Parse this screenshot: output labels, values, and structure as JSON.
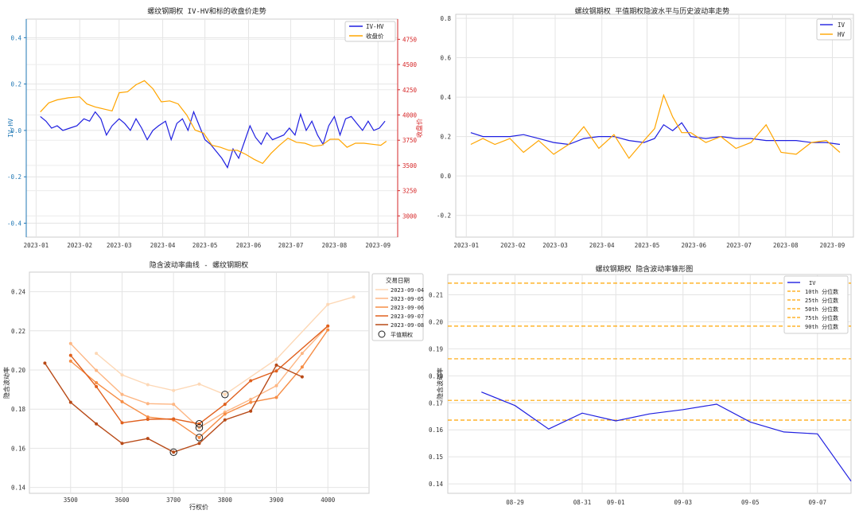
{
  "chart_data": [
    {
      "type": "line",
      "title": "螺纹钢期权 IV-HV和标的收盘价走势",
      "ylabel": "IV-HV",
      "y2label": "收盘价",
      "ylim": [
        -0.46,
        0.48
      ],
      "y2lim": [
        2790,
        4950
      ],
      "xlim": [
        "2022-12-25",
        "2023-09-15"
      ],
      "grid": true,
      "legend_position": "top-right",
      "x_ticks": [
        "2023-01",
        "2023-02",
        "2023-03",
        "2023-04",
        "2023-05",
        "2023-06",
        "2023-07",
        "2023-08",
        "2023-09"
      ],
      "y_ticks": [
        -0.4,
        -0.2,
        0.0,
        0.2,
        0.4
      ],
      "y2_ticks": [
        3000,
        3250,
        3500,
        3750,
        4000,
        4250,
        4500,
        4750
      ],
      "series": [
        {
          "name": "IV-HV",
          "axis": "left",
          "color": "#1f1fe0",
          "x": [
            "2023-01-04",
            "2023-01-08",
            "2023-01-12",
            "2023-01-16",
            "2023-01-20",
            "2023-01-25",
            "2023-01-30",
            "2023-02-04",
            "2023-02-08",
            "2023-02-12",
            "2023-02-16",
            "2023-02-20",
            "2023-02-24",
            "2023-03-01",
            "2023-03-05",
            "2023-03-09",
            "2023-03-13",
            "2023-03-17",
            "2023-03-21",
            "2023-03-25",
            "2023-03-29",
            "2023-04-03",
            "2023-04-07",
            "2023-04-11",
            "2023-04-15",
            "2023-04-19",
            "2023-04-23",
            "2023-04-27",
            "2023-05-01",
            "2023-05-05",
            "2023-05-09",
            "2023-05-13",
            "2023-05-17",
            "2023-05-21",
            "2023-05-25",
            "2023-05-29",
            "2023-06-02",
            "2023-06-06",
            "2023-06-10",
            "2023-06-14",
            "2023-06-18",
            "2023-06-22",
            "2023-06-26",
            "2023-06-30",
            "2023-07-04",
            "2023-07-08",
            "2023-07-12",
            "2023-07-16",
            "2023-07-20",
            "2023-07-24",
            "2023-07-28",
            "2023-08-01",
            "2023-08-05",
            "2023-08-09",
            "2023-08-13",
            "2023-08-17",
            "2023-08-21",
            "2023-08-25",
            "2023-08-29",
            "2023-09-02",
            "2023-09-06"
          ],
          "values": [
            0.06,
            0.04,
            0.01,
            0.02,
            0.0,
            0.01,
            0.02,
            0.05,
            0.04,
            0.08,
            0.05,
            -0.02,
            0.02,
            0.05,
            0.03,
            0.0,
            0.05,
            0.01,
            -0.04,
            0.0,
            0.02,
            0.04,
            -0.04,
            0.03,
            0.05,
            0.0,
            0.08,
            0.02,
            -0.04,
            -0.06,
            -0.09,
            -0.12,
            -0.16,
            -0.08,
            -0.12,
            -0.05,
            0.02,
            -0.03,
            -0.06,
            -0.01,
            -0.04,
            -0.03,
            -0.02,
            0.01,
            -0.02,
            0.07,
            0.0,
            0.04,
            -0.02,
            -0.06,
            0.02,
            0.06,
            -0.02,
            0.05,
            0.06,
            0.03,
            0.0,
            0.04,
            0.0,
            0.01,
            0.04
          ]
        },
        {
          "name": "收盘价",
          "axis": "right",
          "color": "#ffa500",
          "x": [
            "2023-01-04",
            "2023-01-10",
            "2023-01-16",
            "2023-01-24",
            "2023-02-01",
            "2023-02-06",
            "2023-02-12",
            "2023-02-18",
            "2023-02-24",
            "2023-03-01",
            "2023-03-07",
            "2023-03-13",
            "2023-03-19",
            "2023-03-25",
            "2023-03-31",
            "2023-04-06",
            "2023-04-12",
            "2023-04-18",
            "2023-04-24",
            "2023-04-30",
            "2023-05-06",
            "2023-05-12",
            "2023-05-18",
            "2023-05-24",
            "2023-05-30",
            "2023-06-05",
            "2023-06-11",
            "2023-06-17",
            "2023-06-23",
            "2023-06-29",
            "2023-07-05",
            "2023-07-11",
            "2023-07-17",
            "2023-07-23",
            "2023-07-29",
            "2023-08-04",
            "2023-08-10",
            "2023-08-16",
            "2023-08-22",
            "2023-08-28",
            "2023-09-03",
            "2023-09-07"
          ],
          "values": [
            4030,
            4120,
            4150,
            4170,
            4180,
            4110,
            4080,
            4060,
            4040,
            4220,
            4230,
            4300,
            4340,
            4260,
            4130,
            4140,
            4110,
            4000,
            3850,
            3820,
            3700,
            3680,
            3650,
            3650,
            3610,
            3560,
            3520,
            3620,
            3700,
            3770,
            3730,
            3720,
            3690,
            3700,
            3760,
            3760,
            3680,
            3720,
            3720,
            3710,
            3700,
            3740
          ]
        }
      ]
    },
    {
      "type": "line",
      "title": "螺纹钢期权 平值期权隐波水平与历史波动率走势",
      "ylim": [
        -0.31,
        0.82
      ],
      "xlim": [
        "2022-12-25",
        "2023-09-15"
      ],
      "grid": true,
      "legend_position": "top-right",
      "x_ticks": [
        "2023-01",
        "2023-02",
        "2023-03",
        "2023-04",
        "2023-05",
        "2023-06",
        "2023-07",
        "2023-08",
        "2023-09"
      ],
      "y_ticks": [
        -0.2,
        0.0,
        0.2,
        0.4,
        0.6,
        0.8
      ],
      "series": [
        {
          "name": "IV",
          "color": "#1f1fe0",
          "x": [
            "2023-01-04",
            "2023-01-12",
            "2023-01-20",
            "2023-01-30",
            "2023-02-08",
            "2023-02-18",
            "2023-02-28",
            "2023-03-10",
            "2023-03-20",
            "2023-03-30",
            "2023-04-09",
            "2023-04-19",
            "2023-04-29",
            "2023-05-06",
            "2023-05-12",
            "2023-05-18",
            "2023-05-24",
            "2023-05-30",
            "2023-06-09",
            "2023-06-19",
            "2023-06-29",
            "2023-07-09",
            "2023-07-19",
            "2023-07-29",
            "2023-08-08",
            "2023-08-18",
            "2023-08-28",
            "2023-09-06"
          ],
          "values": [
            0.22,
            0.2,
            0.2,
            0.2,
            0.21,
            0.19,
            0.17,
            0.16,
            0.19,
            0.2,
            0.2,
            0.18,
            0.17,
            0.19,
            0.26,
            0.23,
            0.27,
            0.2,
            0.19,
            0.2,
            0.19,
            0.19,
            0.18,
            0.18,
            0.18,
            0.17,
            0.17,
            0.16
          ]
        },
        {
          "name": "HV",
          "color": "#ffa500",
          "x": [
            "2023-01-04",
            "2023-01-12",
            "2023-01-20",
            "2023-01-30",
            "2023-02-08",
            "2023-02-18",
            "2023-02-28",
            "2023-03-10",
            "2023-03-20",
            "2023-03-30",
            "2023-04-09",
            "2023-04-19",
            "2023-04-29",
            "2023-05-06",
            "2023-05-12",
            "2023-05-18",
            "2023-05-24",
            "2023-05-30",
            "2023-06-09",
            "2023-06-19",
            "2023-06-29",
            "2023-07-09",
            "2023-07-19",
            "2023-07-29",
            "2023-08-08",
            "2023-08-18",
            "2023-08-28",
            "2023-09-06"
          ],
          "values": [
            0.16,
            0.19,
            0.16,
            0.19,
            0.12,
            0.18,
            0.11,
            0.16,
            0.25,
            0.14,
            0.21,
            0.09,
            0.18,
            0.24,
            0.41,
            0.3,
            0.22,
            0.22,
            0.17,
            0.2,
            0.14,
            0.17,
            0.26,
            0.12,
            0.11,
            0.17,
            0.18,
            0.12
          ]
        }
      ]
    },
    {
      "type": "line",
      "title": "隐含波动率曲线 - 螺纹钢期权",
      "xlabel": "行权价",
      "ylabel": "隐含波动率",
      "xlim": [
        3420,
        4080
      ],
      "ylim": [
        0.137,
        0.25
      ],
      "grid": true,
      "legend_title": "交易日期",
      "legend_position": "upper-right-outside",
      "atm_label": "平值期权",
      "x_ticks": [
        3500,
        3600,
        3700,
        3800,
        3900,
        4000
      ],
      "y_ticks": [
        0.14,
        0.16,
        0.18,
        0.2,
        0.22,
        0.24
      ],
      "series": [
        {
          "name": "2023-09-04",
          "color": "#fdd8b6",
          "x": [
            3550,
            3600,
            3650,
            3700,
            3750,
            3800,
            3900,
            4000,
            4050
          ],
          "values": [
            0.2085,
            0.1975,
            0.1925,
            0.1895,
            0.1928,
            0.1875,
            0.2055,
            0.2335,
            0.2373
          ]
        },
        {
          "name": "2023-09-05",
          "color": "#fdb683",
          "x": [
            3500,
            3550,
            3600,
            3650,
            3700,
            3750,
            3800,
            3850,
            3900,
            3950,
            4000
          ],
          "values": [
            0.2135,
            0.1998,
            0.1875,
            0.1828,
            0.1825,
            0.1705,
            0.1785,
            0.185,
            0.192,
            0.2085,
            0.2225
          ]
        },
        {
          "name": "2023-09-06",
          "color": "#f68d45",
          "x": [
            3500,
            3550,
            3600,
            3650,
            3700,
            3750,
            3800,
            3850,
            3900,
            3950,
            4000
          ],
          "values": [
            0.2045,
            0.1935,
            0.1838,
            0.176,
            0.1745,
            0.1655,
            0.1775,
            0.1835,
            0.186,
            0.2015,
            0.2205
          ]
        },
        {
          "name": "2023-09-07",
          "color": "#e0601d",
          "x": [
            3500,
            3550,
            3600,
            3650,
            3700,
            3750,
            3800,
            3850,
            3900,
            4000
          ],
          "values": [
            0.2075,
            0.1915,
            0.173,
            0.1748,
            0.175,
            0.1725,
            0.1825,
            0.1945,
            0.1995,
            0.2225
          ]
        },
        {
          "name": "2023-09-08",
          "color": "#b84a17",
          "x": [
            3450,
            3500,
            3550,
            3600,
            3650,
            3700,
            3750,
            3800,
            3850,
            3900,
            3950
          ],
          "values": [
            0.2035,
            0.1835,
            0.1725,
            0.1625,
            0.165,
            0.158,
            0.1625,
            0.1745,
            0.179,
            0.2025,
            0.1965
          ]
        }
      ],
      "atm_points": [
        {
          "x": 3700,
          "y": 0.158
        },
        {
          "x": 3750,
          "y": 0.1655
        },
        {
          "x": 3750,
          "y": 0.1705
        },
        {
          "x": 3750,
          "y": 0.1725
        },
        {
          "x": 3800,
          "y": 0.1875
        }
      ]
    },
    {
      "type": "line",
      "title": "螺纹钢期权 隐含波动率锥形图",
      "ylabel": "隐含波动率",
      "xlim": [
        "2023-08-27",
        "2023-09-08"
      ],
      "ylim": [
        0.1365,
        0.2175
      ],
      "grid": true,
      "legend_position": "top-right",
      "x_ticks": [
        "08-29",
        "08-31",
        "09-01",
        "09-03",
        "09-05",
        "09-07"
      ],
      "x_tick_dates": [
        "2023-08-29",
        "2023-08-31",
        "2023-09-01",
        "2023-09-03",
        "2023-09-05",
        "2023-09-07"
      ],
      "y_ticks": [
        0.14,
        0.15,
        0.16,
        0.17,
        0.18,
        0.19,
        0.2,
        0.21
      ],
      "series": [
        {
          "name": "IV",
          "color": "#1f1fe0",
          "x": [
            "2023-08-28",
            "2023-08-29",
            "2023-08-30",
            "2023-08-31",
            "2023-09-01",
            "2023-09-02",
            "2023-09-03",
            "2023-09-04",
            "2023-09-05",
            "2023-09-06",
            "2023-09-07",
            "2023-09-08"
          ],
          "values": [
            0.174,
            0.169,
            0.1603,
            0.1662,
            0.1633,
            0.1659,
            0.1675,
            0.1695,
            0.1629,
            0.1592,
            0.1585,
            0.141
          ]
        }
      ],
      "percentiles": [
        {
          "name": "10th 分位数",
          "value": 0.1636,
          "color": "#ffa500"
        },
        {
          "name": "25th 分位数",
          "value": 0.1709,
          "color": "#ffa500"
        },
        {
          "name": "50th 分位数",
          "value": 0.1863,
          "color": "#ffa500"
        },
        {
          "name": "75th 分位数",
          "value": 0.1984,
          "color": "#ffa500"
        },
        {
          "name": "90th 分位数",
          "value": 0.2143,
          "color": "#ffa500"
        }
      ]
    }
  ]
}
